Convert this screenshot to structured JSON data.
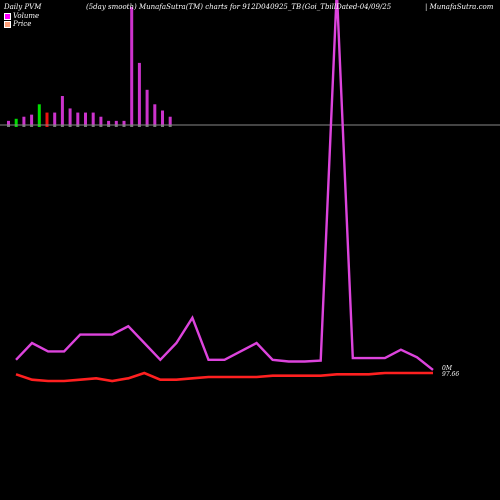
{
  "header": {
    "left": "Daily PVM",
    "center": "(5day smooth) MunafaSutra(TM) charts for 912D040925_TB",
    "right": "(Goi_TbillDated-04/09/25",
    "site": "| MunafaSutra.com"
  },
  "legend": [
    {
      "label": "Volume",
      "color": "#ff00ff"
    },
    {
      "label": "Price",
      "color": "#ffa07a"
    }
  ],
  "colors": {
    "volume_line": "#dd44dd",
    "price_line": "#ff2020",
    "bar_up": "#cc33cc",
    "bar_down": "#00dd00",
    "bar_red": "#ee1111",
    "baseline": "#888888"
  },
  "chart_data": {
    "type": "line",
    "series": [
      {
        "name": "Volume",
        "values": [
          3,
          5,
          4,
          4,
          6,
          6,
          6,
          7,
          5,
          3,
          5,
          8,
          3,
          3,
          4,
          5,
          3,
          2.8,
          2.8,
          2.9,
          47,
          3.2,
          3.2,
          3.2,
          4.2,
          3.3,
          1.8
        ]
      },
      {
        "name": "Price",
        "values": [
          97.78,
          97.74,
          97.73,
          97.73,
          97.74,
          97.75,
          97.73,
          97.75,
          97.79,
          97.74,
          97.74,
          97.75,
          97.76,
          97.76,
          97.76,
          97.76,
          97.77,
          97.77,
          97.77,
          97.77,
          97.78,
          97.78,
          97.78,
          97.79,
          97.79,
          97.79,
          97.79
        ]
      }
    ],
    "volume_bars": [
      {
        "value": 2,
        "dir": "up"
      },
      {
        "value": 3,
        "dir": "down"
      },
      {
        "value": 4,
        "dir": "up"
      },
      {
        "value": 5,
        "dir": "up"
      },
      {
        "value": 10,
        "dir": "down"
      },
      {
        "value": 6,
        "dir": "red"
      },
      {
        "value": 6,
        "dir": "up"
      },
      {
        "value": 14,
        "dir": "up"
      },
      {
        "value": 8,
        "dir": "up"
      },
      {
        "value": 6,
        "dir": "up"
      },
      {
        "value": 6,
        "dir": "up"
      },
      {
        "value": 6,
        "dir": "up"
      },
      {
        "value": 4,
        "dir": "up"
      },
      {
        "value": 2,
        "dir": "up"
      },
      {
        "value": 2,
        "dir": "up"
      },
      {
        "value": 2,
        "dir": "up"
      },
      {
        "value": 57,
        "dir": "up"
      },
      {
        "value": 30,
        "dir": "up"
      },
      {
        "value": 17,
        "dir": "up"
      },
      {
        "value": 10,
        "dir": "up"
      },
      {
        "value": 7,
        "dir": "up"
      },
      {
        "value": 4,
        "dir": "up"
      }
    ],
    "price_label_top": "0M",
    "price_label_bottom": "97.66"
  }
}
